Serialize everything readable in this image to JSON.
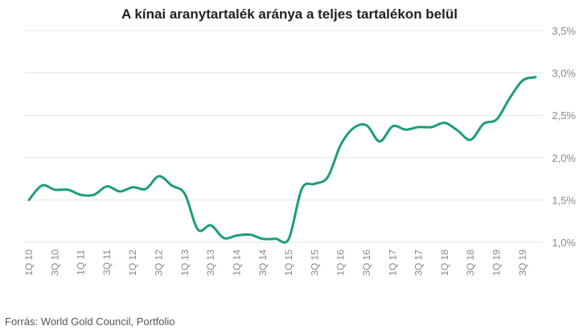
{
  "title": "A kínai aranytartalék aránya a teljes tartalékon belül",
  "source": "Forrás: World Gold Council, Portfolio",
  "colors": {
    "line": "#1a9e7a",
    "grid": "#e3e3e3",
    "tick_text": "#888888"
  },
  "chart_data": {
    "type": "line",
    "title": "A kínai aranytartalék aránya a teljes tartalékon belül",
    "xlabel": "",
    "ylabel": "",
    "ylim": [
      1.0,
      3.5
    ],
    "yticks": [
      "1,0%",
      "1,5%",
      "2,0%",
      "2,5%",
      "3,0%",
      "3,5%"
    ],
    "ytick_values": [
      1.0,
      1.5,
      2.0,
      2.5,
      3.0,
      3.5
    ],
    "y_axis_position": "right",
    "grid": true,
    "legend": "none",
    "xticks": [
      "1Q 10",
      "3Q 10",
      "1Q 11",
      "3Q 11",
      "1Q 12",
      "3Q 12",
      "1Q 13",
      "3Q 13",
      "1Q 14",
      "3Q 14",
      "1Q 15",
      "3Q 15",
      "1Q 16",
      "3Q 16",
      "1Q 17",
      "3Q 17",
      "1Q 18",
      "3Q 18",
      "1Q 19",
      "3Q 19"
    ],
    "x": [
      "1Q10",
      "2Q10",
      "3Q10",
      "4Q10",
      "1Q11",
      "2Q11",
      "3Q11",
      "4Q11",
      "1Q12",
      "2Q12",
      "3Q12",
      "4Q12",
      "1Q13",
      "2Q13",
      "3Q13",
      "4Q13",
      "1Q14",
      "2Q14",
      "3Q14",
      "4Q14",
      "1Q15",
      "2Q15",
      "3Q15",
      "4Q15",
      "1Q16",
      "2Q16",
      "3Q16",
      "4Q16",
      "1Q17",
      "2Q17",
      "3Q17",
      "4Q17",
      "1Q18",
      "2Q18",
      "3Q18",
      "4Q18",
      "1Q19",
      "2Q19",
      "3Q19",
      "4Q19"
    ],
    "series": [
      {
        "values": [
          1.5,
          1.67,
          1.62,
          1.62,
          1.56,
          1.56,
          1.66,
          1.6,
          1.65,
          1.63,
          1.78,
          1.67,
          1.57,
          1.15,
          1.2,
          1.05,
          1.08,
          1.09,
          1.04,
          1.04,
          1.04,
          1.63,
          1.69,
          1.77,
          2.15,
          2.35,
          2.38,
          2.19,
          2.37,
          2.33,
          2.36,
          2.36,
          2.41,
          2.32,
          2.21,
          2.4,
          2.45,
          2.7,
          2.91,
          2.95
        ]
      }
    ]
  }
}
